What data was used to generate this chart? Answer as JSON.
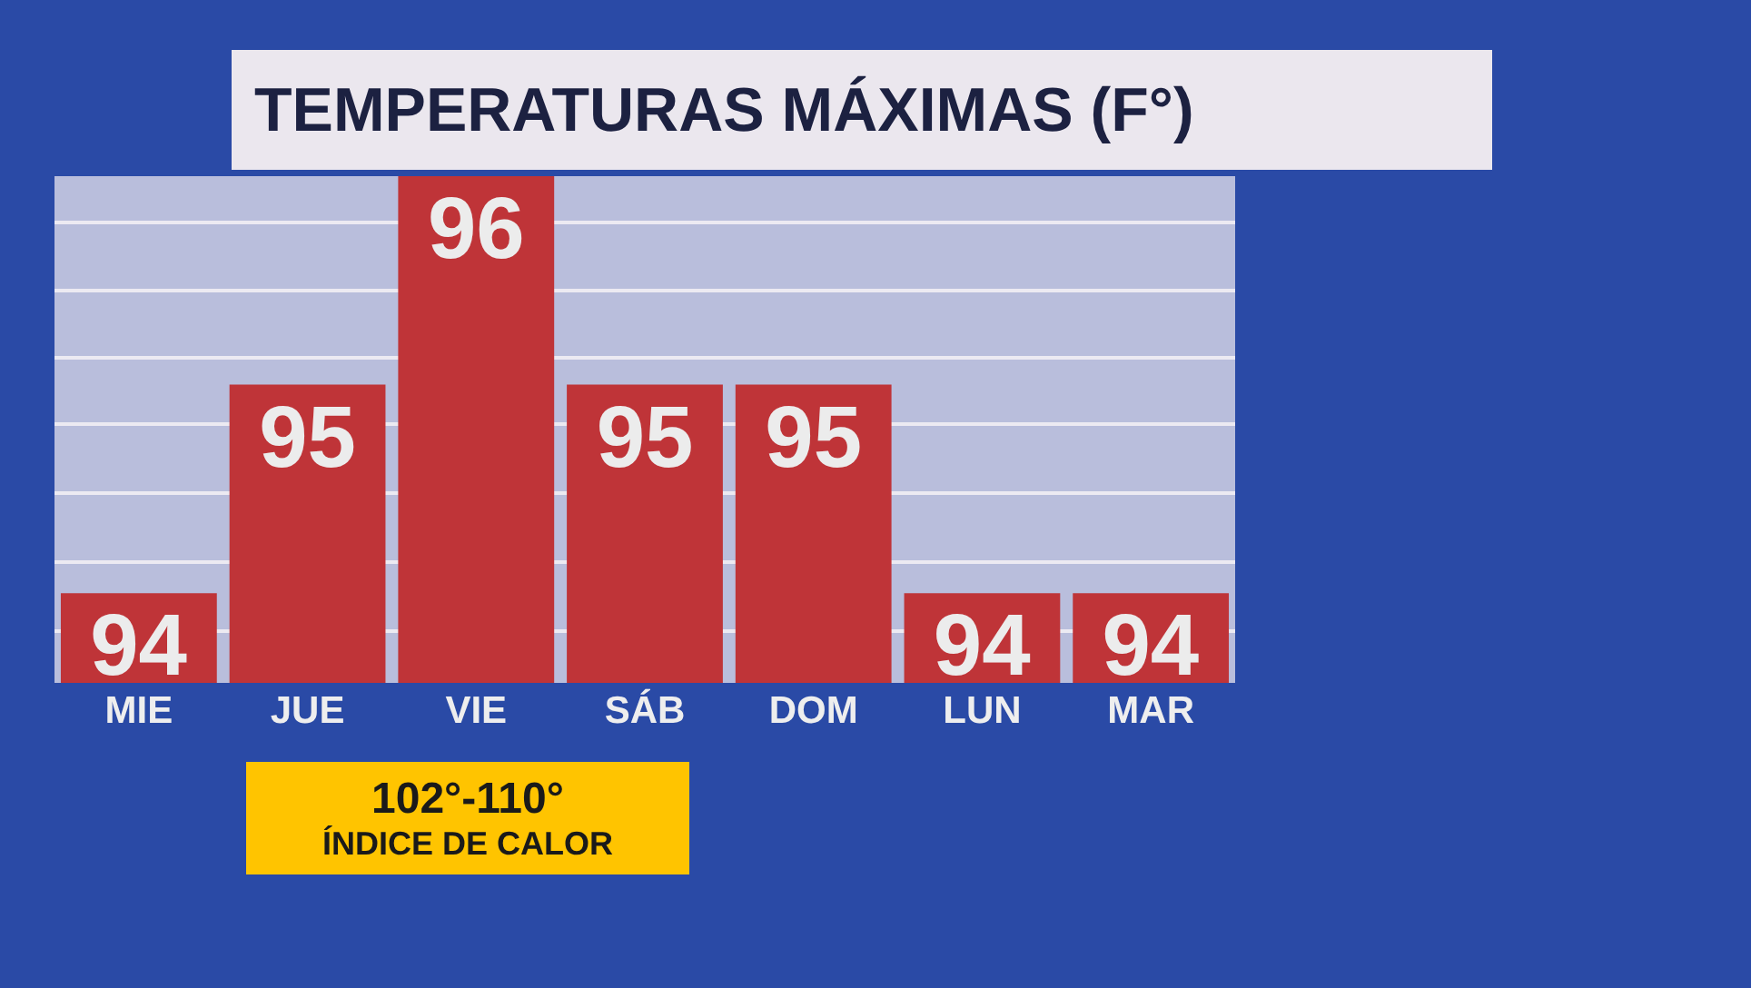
{
  "chart_data": {
    "type": "bar",
    "title": "TEMPERATURAS MÁXIMAS (F°)",
    "categories": [
      "MIE",
      "JUE",
      "VIE",
      "SÁB",
      "DOM",
      "LUN",
      "MAR"
    ],
    "values": [
      94,
      95,
      96,
      95,
      95,
      94,
      94
    ],
    "color": "#bf3438",
    "data_labels": true,
    "ylim": [
      93.57,
      96
    ],
    "yticks": [
      {
        "value": 93.82,
        "label": null
      },
      {
        "value": 94.15,
        "label": null
      },
      {
        "value": 94.48,
        "label": null
      },
      {
        "value": 94.81,
        "label": null
      },
      {
        "value": 95.13,
        "label": null
      },
      {
        "value": 95.45,
        "label": null
      },
      {
        "value": 95.78,
        "label": null
      }
    ],
    "grid": "y",
    "tick_labels": "x",
    "annotations": [
      "102°-110°\nÍNDICE DE CALOR"
    ]
  }
}
